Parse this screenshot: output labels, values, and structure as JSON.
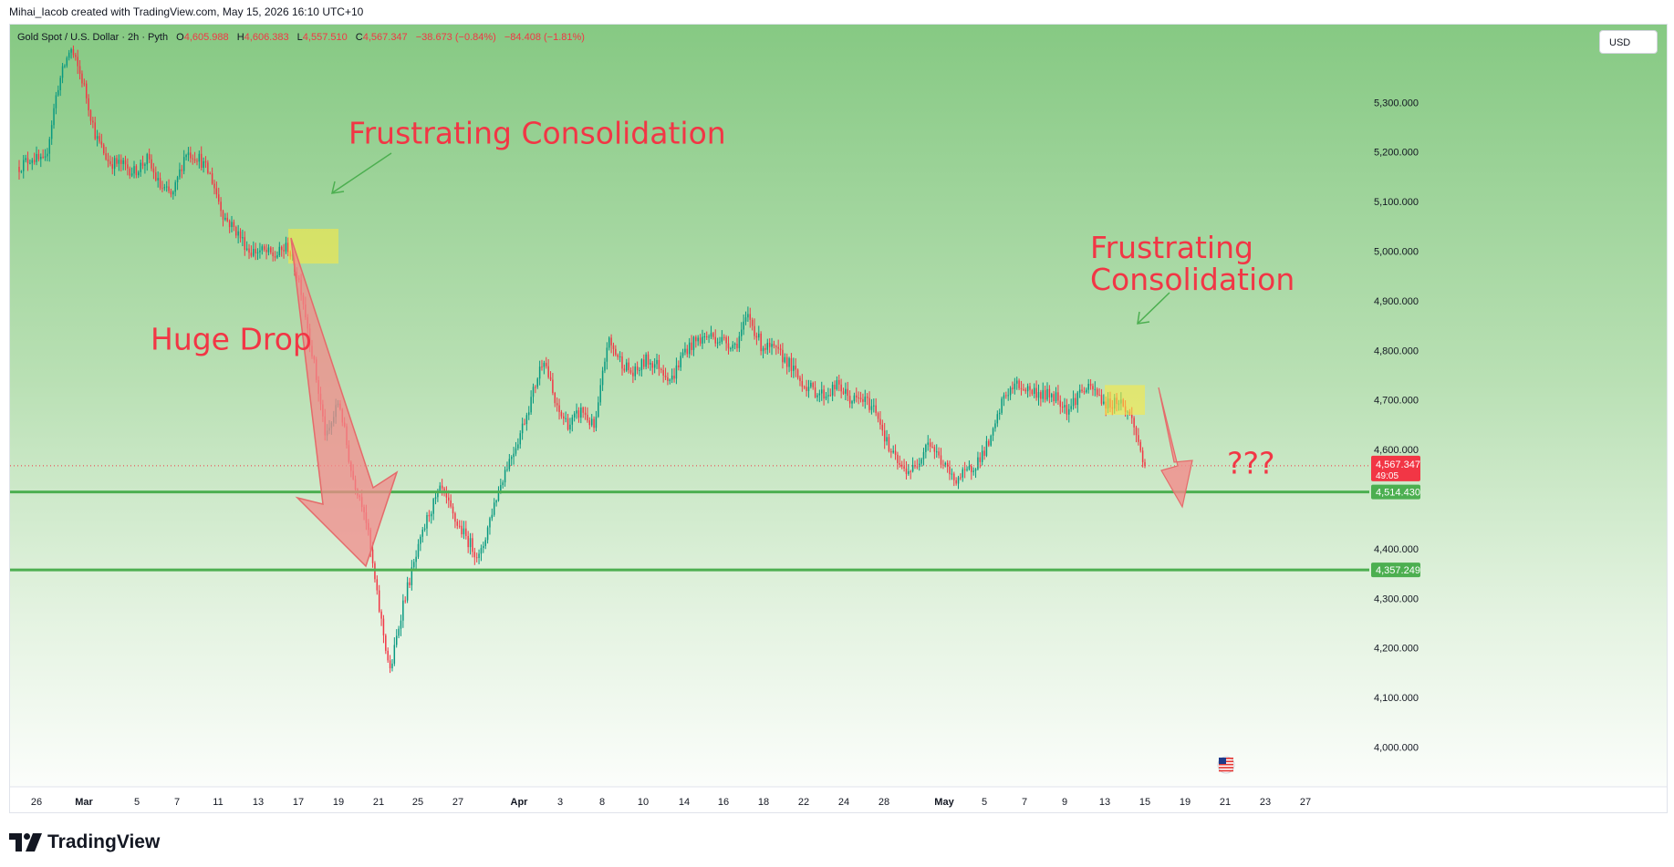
{
  "header": {
    "credit": "Mihai_Iacob created with TradingView.com, May 15, 2026 16:10 UTC+10",
    "symbol": "Gold Spot / U.S. Dollar · 2h · Pyth",
    "o_label": "O",
    "o_value": "4,605.988",
    "h_label": "H",
    "h_value": "4,606.383",
    "l_label": "L",
    "l_value": "4,557.510",
    "c_label": "C",
    "c_value": "4,567.347",
    "change": "−38.673 (−0.84%)",
    "change2": "−84.408 (−1.81%)"
  },
  "currency_button": "USD",
  "brand": "TradingView",
  "colors": {
    "background_top": "#8dcb8a",
    "background_bottom": "#ffffff",
    "candle_up": "#089981",
    "candle_down": "#f23645",
    "support_line": "#4caf50",
    "annotation_text": "#f23645",
    "consolidation_box": "#ffeb3b",
    "arrow_fill": "#f28b8b"
  },
  "chart_data": {
    "type": "candlestick",
    "ylim": [
      3920,
      5420
    ],
    "y_ticks": [
      {
        "value": 5300,
        "label": "5,300.000"
      },
      {
        "value": 5200,
        "label": "5,200.000"
      },
      {
        "value": 5100,
        "label": "5,100.000"
      },
      {
        "value": 5000,
        "label": "5,000.000"
      },
      {
        "value": 4900,
        "label": "4,900.000"
      },
      {
        "value": 4800,
        "label": "4,800.000"
      },
      {
        "value": 4700,
        "label": "4,700.000"
      },
      {
        "value": 4600,
        "label": "4,600.000"
      },
      {
        "value": 4400,
        "label": "4,400.000"
      },
      {
        "value": 4300,
        "label": "4,300.000"
      },
      {
        "value": 4200,
        "label": "4,200.000"
      },
      {
        "value": 4100,
        "label": "4,100.000"
      },
      {
        "value": 4000,
        "label": "4,000.000"
      }
    ],
    "x_ticks": [
      "26",
      "Mar",
      "5",
      "7",
      "11",
      "13",
      "17",
      "19",
      "21",
      "25",
      "27",
      "Apr",
      "3",
      "8",
      "10",
      "14",
      "16",
      "18",
      "22",
      "24",
      "28",
      "May",
      "5",
      "7",
      "9",
      "13",
      "15",
      "19",
      "21",
      "23",
      "27"
    ],
    "bold_x_ticks": [
      "Mar",
      "Apr",
      "May"
    ],
    "price_path": [
      5170,
      5190,
      5175,
      5330,
      5410,
      5340,
      5230,
      5180,
      5175,
      5160,
      5185,
      5130,
      5110,
      5200,
      5190,
      5150,
      5070,
      5040,
      5000,
      5000,
      4990,
      5010,
      4930,
      4780,
      4620,
      4700,
      4550,
      4480,
      4300,
      4150,
      4290,
      4380,
      4470,
      4520,
      4460,
      4420,
      4380,
      4480,
      4560,
      4620,
      4700,
      4790,
      4680,
      4650,
      4680,
      4640,
      4820,
      4780,
      4750,
      4780,
      4770,
      4740,
      4800,
      4820,
      4830,
      4820,
      4810,
      4870,
      4810,
      4800,
      4780,
      4740,
      4720,
      4710,
      4730,
      4700,
      4700,
      4680,
      4600,
      4560,
      4560,
      4620,
      4580,
      4540,
      4550,
      4580,
      4620,
      4710,
      4730,
      4720,
      4710,
      4710,
      4680,
      4720,
      4720,
      4690,
      4700,
      4660,
      4567
    ],
    "price_path_x": [
      "2026-02-24",
      "2026-03-17",
      "2026-05-15"
    ],
    "support_levels": [
      {
        "value": 4514.43,
        "label": "4,514.430"
      },
      {
        "value": 4357.249,
        "label": "4,357.249"
      }
    ],
    "current_price": {
      "value": 4567.347,
      "label": "4,567.347",
      "countdown": "49:05"
    },
    "annotations": [
      {
        "text": "Frustrating Consolidation"
      },
      {
        "text": "Frustrating Consolidation"
      },
      {
        "text": "Huge Drop"
      },
      {
        "text": "???"
      }
    ],
    "consolidation_zones": [
      {
        "from": "2026-03-16",
        "to": "2026-03-19",
        "low": 4975,
        "high": 5045
      },
      {
        "from": "2026-05-13",
        "to": "2026-05-15",
        "low": 4670,
        "high": 4730
      }
    ]
  }
}
